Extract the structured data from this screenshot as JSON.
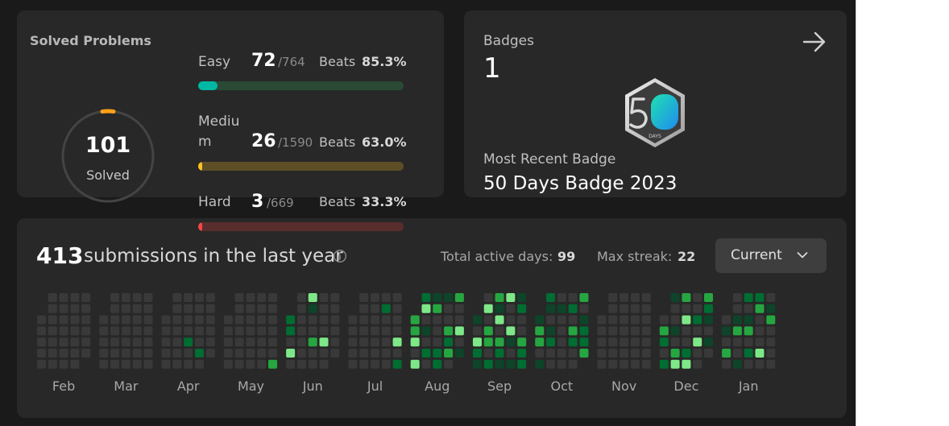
{
  "solved": {
    "title": "Solved Problems",
    "count": "101",
    "count_label": "Solved",
    "difficulties": [
      {
        "name": "Easy",
        "solved": "72",
        "total": "/764",
        "beats_label": "Beats",
        "beats": "85.3%",
        "fraction": 0.094,
        "color": "#00b8a3",
        "track": "#2a4a36"
      },
      {
        "name_line1": "Mediu",
        "name_line2": "m",
        "solved": "26",
        "total": "/1590",
        "beats_label": "Beats",
        "beats": "63.0%",
        "fraction": 0.016,
        "color": "#ffc01e",
        "track": "#5e4e26"
      },
      {
        "name": "Hard",
        "solved": "3",
        "total": "/669",
        "beats_label": "Beats",
        "beats": "33.3%",
        "fraction": 0.0045,
        "color": "#ef4743",
        "track": "#5a2d2d"
      }
    ]
  },
  "badges": {
    "title": "Badges",
    "count": "1",
    "icon": "arrow-right-icon",
    "badge_icon": "fifty-days-badge-icon",
    "badge_days_text": "DAYS",
    "recent_label": "Most Recent Badge",
    "recent_name": "50 Days Badge 2023"
  },
  "calendar": {
    "count": "413",
    "text": "submissions in the last year",
    "info_icon": "info-icon",
    "active_days_label": "Total active days:",
    "active_days": "99",
    "max_streak_label": "Max streak:",
    "max_streak": "22",
    "dropdown_label": "Current",
    "dropdown_icon": "chevron-down-icon",
    "months": [
      "Feb",
      "Mar",
      "Apr",
      "May",
      "Jun",
      "Jul",
      "Aug",
      "Sep",
      "Oct",
      "Nov",
      "Dec",
      "Jan"
    ],
    "colors": {
      "empty": "#393939",
      "l1": "#0e4429",
      "l2": "#006d32",
      "l3": "#26a641",
      "l4": "#7ee787"
    }
  }
}
